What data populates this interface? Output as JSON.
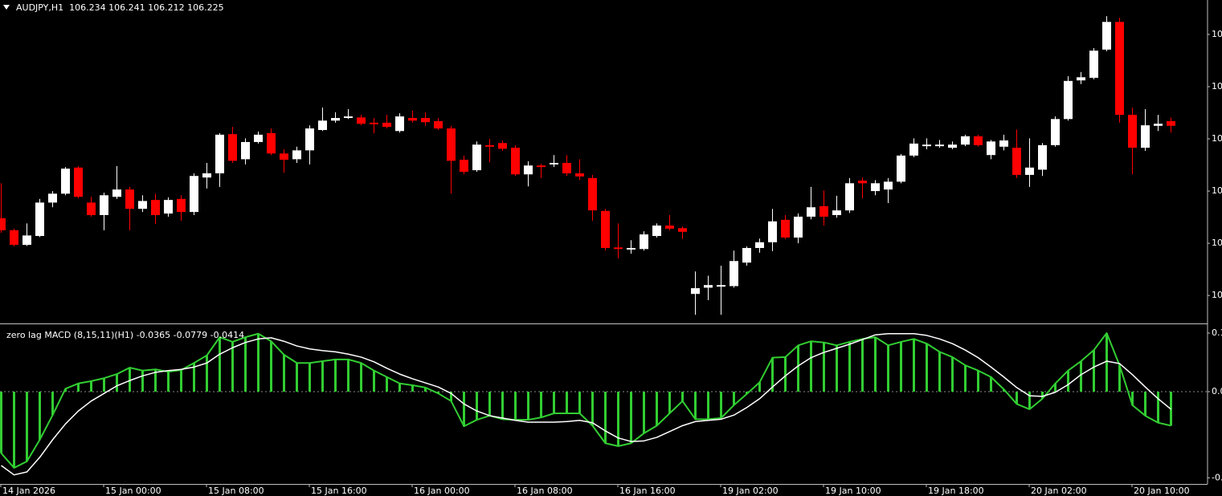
{
  "chart_data": [
    {
      "type": "candlestick",
      "title": "AUDJPY,H1  106.234 106.241 106.212 106.225",
      "categories": [
        "14 Jan 2026",
        null,
        null,
        null,
        null,
        null,
        null,
        null,
        "15 Jan 00:00",
        null,
        null,
        null,
        null,
        null,
        null,
        null,
        "15 Jan 08:00",
        null,
        null,
        null,
        null,
        null,
        null,
        null,
        "15 Jan 16:00",
        null,
        null,
        null,
        null,
        null,
        null,
        null,
        "16 Jan 00:00",
        null,
        null,
        null,
        null,
        null,
        null,
        null,
        "16 Jan 08:00",
        null,
        null,
        null,
        null,
        null,
        null,
        null,
        "16 Jan 16:00",
        null,
        null,
        null,
        null,
        null,
        null,
        null,
        "19 Jan 02:00",
        null,
        null,
        null,
        null,
        null,
        null,
        null,
        "19 Jan 10:00",
        null,
        null,
        null,
        null,
        null,
        null,
        null,
        "19 Jan 18:00",
        null,
        null,
        null,
        null,
        null,
        null,
        null,
        "20 Jan 02:00",
        null,
        null,
        null,
        null,
        null,
        null,
        null,
        "20 Jan 10:00",
        null,
        null,
        null
      ],
      "open": [
        106.048,
        106.025,
        105.997,
        106.014,
        106.078,
        106.095,
        106.145,
        106.078,
        106.054,
        106.089,
        106.103,
        106.066,
        106.083,
        106.057,
        106.085,
        106.06,
        106.126,
        106.134,
        106.209,
        106.161,
        106.194,
        106.211,
        106.172,
        106.161,
        106.178,
        106.217,
        106.235,
        106.24,
        106.241,
        106.231,
        106.231,
        106.215,
        106.24,
        106.24,
        106.234,
        106.22,
        106.16,
        106.14,
        106.188,
        106.192,
        106.183,
        106.132,
        106.149,
        106.151,
        106.154,
        106.134,
        106.125,
        106.062,
        105.992,
        105.988,
        105.989,
        106.014,
        106.034,
        106.029,
        105.903,
        105.915,
        105.917,
        105.918,
        105.963,
        105.991,
        106.002,
        106.045,
        106.011,
        106.051,
        106.071,
        106.054,
        106.063,
        106.12,
        106.1,
        106.103,
        106.118,
        106.168,
        106.186,
        106.186,
        106.183,
        106.189,
        106.205,
        106.169,
        106.185,
        106.183,
        106.131,
        106.141,
        106.188,
        106.238,
        106.312,
        106.317,
        106.371,
        106.424,
        106.246,
        106.183,
        106.225,
        106.234
      ],
      "high": [
        106.115,
        106.028,
        106.038,
        106.085,
        106.1,
        106.146,
        106.148,
        106.089,
        106.097,
        106.148,
        106.108,
        106.092,
        106.095,
        106.088,
        106.092,
        106.134,
        106.154,
        106.211,
        106.223,
        106.201,
        106.214,
        106.22,
        106.18,
        106.185,
        106.226,
        106.26,
        106.251,
        106.257,
        106.246,
        106.24,
        106.246,
        106.249,
        106.254,
        106.251,
        106.24,
        106.225,
        106.168,
        106.195,
        106.2,
        106.197,
        106.188,
        106.157,
        106.152,
        106.169,
        106.169,
        106.161,
        106.131,
        106.066,
        106.038,
        106.006,
        106.023,
        106.038,
        106.054,
        106.032,
        105.946,
        105.938,
        105.957,
        105.986,
        105.994,
        106.009,
        106.066,
        106.054,
        106.057,
        106.108,
        106.101,
        106.091,
        106.125,
        106.126,
        106.121,
        106.125,
        106.171,
        106.201,
        106.201,
        106.198,
        106.195,
        106.208,
        106.208,
        106.198,
        106.208,
        106.218,
        106.201,
        106.192,
        106.243,
        106.32,
        106.328,
        106.374,
        106.435,
        106.432,
        106.26,
        106.257,
        106.246,
        106.241
      ],
      "low": [
        106.02,
        105.994,
        105.995,
        106.012,
        106.069,
        106.092,
        106.086,
        106.051,
        106.025,
        106.085,
        106.025,
        106.06,
        106.037,
        106.051,
        106.043,
        106.054,
        106.105,
        106.108,
        106.154,
        106.151,
        106.191,
        106.169,
        106.135,
        106.154,
        106.151,
        106.215,
        106.231,
        106.238,
        106.226,
        106.211,
        106.22,
        106.212,
        106.231,
        106.225,
        106.217,
        106.095,
        106.132,
        106.137,
        106.155,
        106.177,
        106.129,
        106.109,
        106.125,
        106.146,
        106.129,
        106.121,
        106.043,
        105.986,
        105.971,
        105.98,
        105.986,
        106.011,
        106.025,
        106.008,
        105.863,
        105.891,
        105.863,
        105.915,
        105.957,
        105.982,
        105.985,
        106.008,
        106.0,
        106.046,
        106.034,
        106.049,
        106.058,
        106.086,
        106.092,
        106.077,
        106.115,
        106.165,
        106.18,
        106.183,
        106.18,
        106.186,
        106.185,
        106.161,
        106.178,
        106.125,
        106.108,
        106.129,
        106.185,
        106.235,
        106.305,
        106.314,
        106.368,
        106.231,
        106.132,
        106.177,
        106.215,
        106.212
      ],
      "close": [
        106.025,
        105.997,
        106.015,
        106.078,
        106.095,
        106.143,
        106.089,
        106.054,
        106.092,
        106.103,
        106.066,
        106.081,
        106.054,
        106.083,
        106.06,
        106.129,
        106.134,
        106.208,
        106.158,
        106.194,
        106.208,
        106.172,
        106.16,
        106.178,
        106.22,
        106.235,
        106.24,
        106.243,
        106.229,
        106.228,
        106.223,
        106.243,
        106.235,
        106.232,
        106.22,
        106.158,
        106.137,
        106.189,
        106.185,
        106.181,
        106.132,
        106.149,
        106.146,
        106.154,
        106.134,
        106.128,
        106.063,
        105.991,
        105.989,
        105.991,
        106.017,
        106.034,
        106.028,
        106.022,
        105.914,
        105.92,
        105.92,
        105.966,
        105.991,
        106.002,
        106.042,
        106.011,
        106.051,
        106.069,
        106.051,
        106.063,
        106.115,
        106.115,
        106.115,
        106.118,
        106.168,
        106.191,
        106.189,
        106.189,
        106.189,
        106.205,
        106.188,
        106.195,
        106.197,
        106.131,
        106.145,
        106.188,
        106.238,
        106.311,
        106.318,
        106.369,
        106.424,
        106.246,
        106.183,
        106.226,
        106.229,
        106.225
      ],
      "up_color": "#ffffff",
      "down_color": "#ff0000",
      "ylim": [
        105.848,
        106.466
      ],
      "yticks": [
        {
          "value": 106.4,
          "label": "10"
        },
        {
          "value": 106.3,
          "label": "10"
        },
        {
          "value": 106.2,
          "label": "10"
        },
        {
          "value": 106.1,
          "label": "10"
        },
        {
          "value": 106.0,
          "label": "10"
        },
        {
          "value": 105.9,
          "label": "10"
        }
      ]
    },
    {
      "type": "macd",
      "title": "zero lag MACD (8,15,11)(H1) -0.0365 -0.0779 -0.0414",
      "series": [
        {
          "color": "#32cd32",
          "values": [
            -0.105,
            -0.13,
            -0.119,
            -0.082,
            -0.04,
            0.005,
            0.014,
            0.018,
            0.023,
            0.03,
            0.041,
            0.036,
            0.038,
            0.034,
            0.037,
            0.049,
            0.062,
            0.093,
            0.085,
            0.093,
            0.099,
            0.086,
            0.063,
            0.049,
            0.049,
            0.052,
            0.055,
            0.055,
            0.049,
            0.036,
            0.025,
            0.014,
            0.011,
            0.007,
            -0.003,
            -0.016,
            -0.059,
            -0.048,
            -0.041,
            -0.047,
            -0.048,
            -0.048,
            -0.044,
            -0.037,
            -0.037,
            -0.037,
            -0.058,
            -0.088,
            -0.093,
            -0.088,
            -0.071,
            -0.058,
            -0.037,
            -0.016,
            -0.047,
            -0.047,
            -0.045,
            -0.023,
            -0.004,
            0.016,
            0.058,
            0.059,
            0.079,
            0.086,
            0.084,
            0.079,
            0.085,
            0.09,
            0.093,
            0.079,
            0.085,
            0.09,
            0.082,
            0.068,
            0.059,
            0.045,
            0.036,
            0.025,
            0.004,
            -0.021,
            -0.03,
            -0.012,
            0.014,
            0.036,
            0.052,
            0.071,
            0.1,
            0.045,
            -0.023,
            -0.041,
            -0.053,
            -0.058
          ]
        },
        {
          "color": "#ffffff",
          "values": [
            -0.126,
            -0.142,
            -0.137,
            -0.112,
            -0.082,
            -0.055,
            -0.033,
            -0.016,
            -0.003,
            0.01,
            0.019,
            0.027,
            0.033,
            0.036,
            0.038,
            0.042,
            0.049,
            0.064,
            0.075,
            0.084,
            0.09,
            0.092,
            0.086,
            0.078,
            0.073,
            0.07,
            0.068,
            0.064,
            0.059,
            0.051,
            0.04,
            0.03,
            0.022,
            0.015,
            0.008,
            -0.003,
            -0.021,
            -0.033,
            -0.041,
            -0.045,
            -0.049,
            -0.052,
            -0.052,
            -0.052,
            -0.051,
            -0.049,
            -0.053,
            -0.067,
            -0.079,
            -0.085,
            -0.084,
            -0.078,
            -0.068,
            -0.058,
            -0.051,
            -0.049,
            -0.047,
            -0.04,
            -0.027,
            -0.012,
            0.008,
            0.027,
            0.044,
            0.058,
            0.067,
            0.074,
            0.081,
            0.089,
            0.097,
            0.099,
            0.099,
            0.099,
            0.096,
            0.09,
            0.082,
            0.071,
            0.058,
            0.042,
            0.025,
            0.007,
            -0.007,
            -0.008,
            -0.001,
            0.012,
            0.029,
            0.042,
            0.052,
            0.048,
            0.029,
            0.008,
            -0.012,
            -0.03
          ]
        }
      ],
      "levels": [
        0
      ],
      "ylim": [
        -0.1575,
        0.1137
      ],
      "yticks": [
        {
          "value": 0.1,
          "label": "0.1"
        },
        {
          "value": 0,
          "label": "0.0"
        },
        {
          "value": -0.147,
          "label": "-0."
        }
      ]
    }
  ]
}
